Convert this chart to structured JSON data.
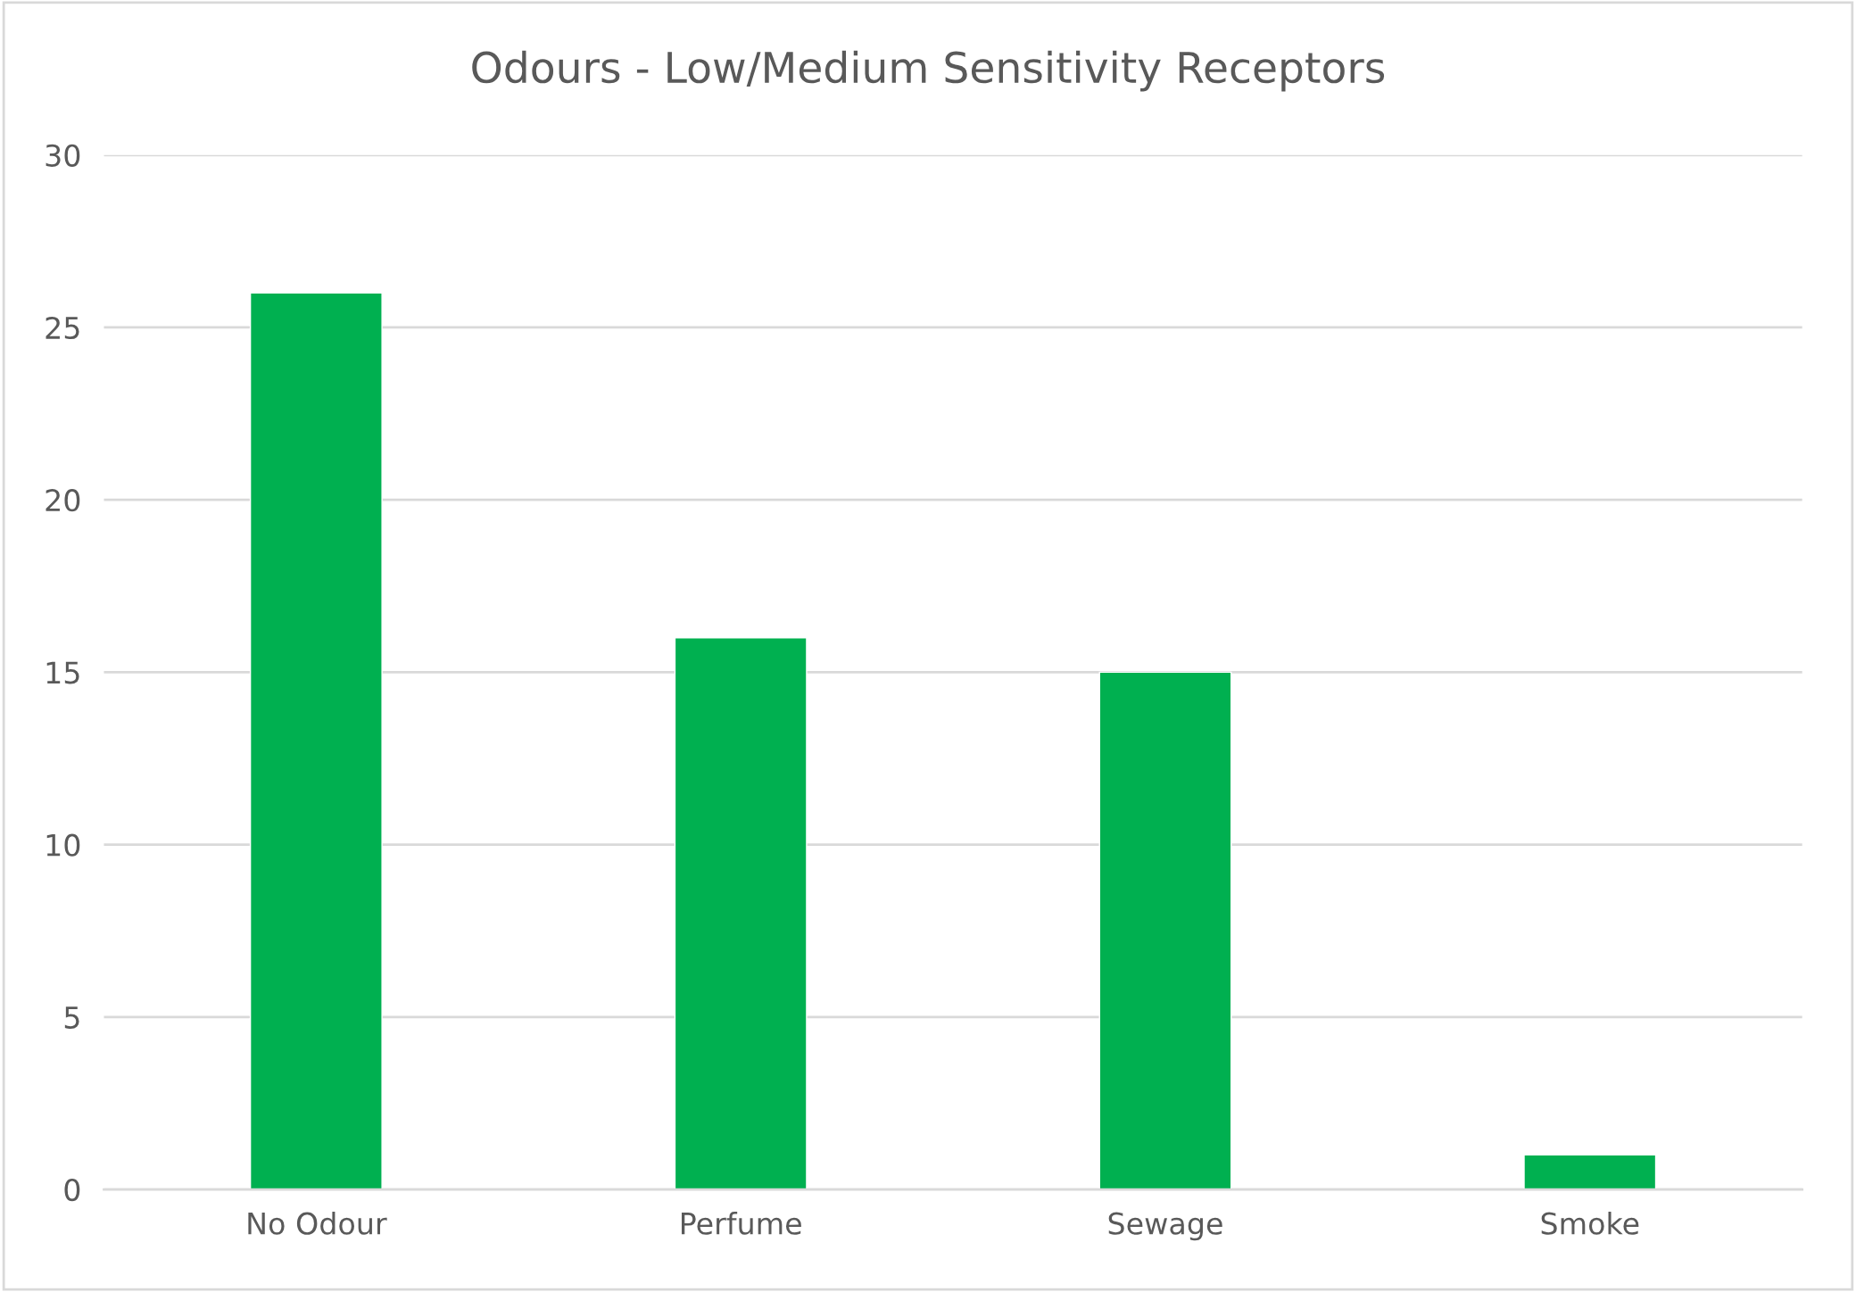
{
  "chart_data": {
    "type": "bar",
    "title": "Odours - Low/Medium Sensitivity Receptors",
    "categories": [
      "No Odour",
      "Perfume",
      "Sewage",
      "Smoke"
    ],
    "values": [
      26,
      16,
      15,
      1
    ],
    "color": "#00b050",
    "ylim": [
      0,
      30
    ],
    "yticks": [
      0,
      5,
      10,
      15,
      20,
      25,
      30
    ],
    "grid": "y"
  }
}
